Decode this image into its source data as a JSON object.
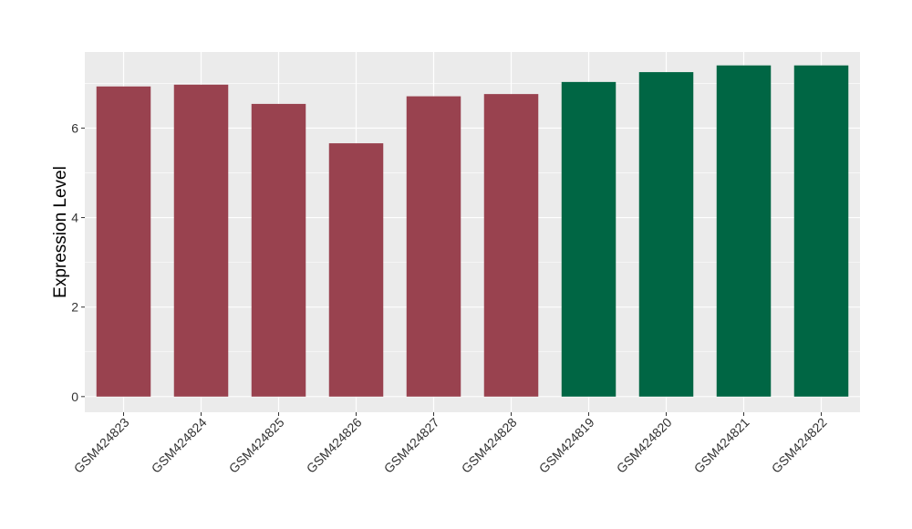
{
  "chart_data": {
    "type": "bar",
    "categories": [
      "GSM424823",
      "GSM424824",
      "GSM424825",
      "GSM424826",
      "GSM424827",
      "GSM424828",
      "GSM424819",
      "GSM424820",
      "GSM424821",
      "GSM424822"
    ],
    "values": [
      6.93,
      6.97,
      6.54,
      5.66,
      6.71,
      6.76,
      7.03,
      7.25,
      7.4,
      7.4
    ],
    "colors": [
      "#99424f",
      "#99424f",
      "#99424f",
      "#99424f",
      "#99424f",
      "#99424f",
      "#006644",
      "#006644",
      "#006644",
      "#006644"
    ],
    "title": "",
    "xlabel": "",
    "ylabel": "Expression Level",
    "ylim": [
      -0.35,
      7.7
    ],
    "yticks": [
      0,
      2,
      4,
      6
    ],
    "ytick_labels": [
      "0",
      "2",
      "4",
      "6"
    ],
    "grid": true,
    "legend": "none",
    "panel_background": "#ebebeb",
    "grid_color": "#ffffff"
  }
}
